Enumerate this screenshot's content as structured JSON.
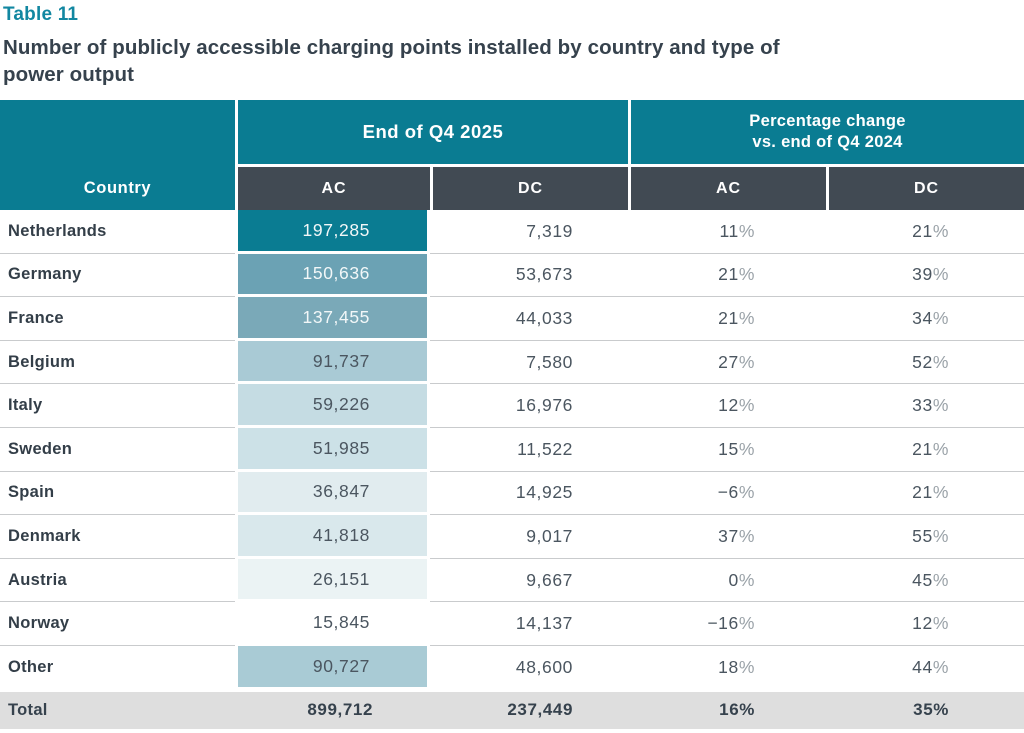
{
  "page": {
    "table_label": "Table 11",
    "title_lines": [
      "Number of publicly accessible charging points installed by country and type of",
      "power output"
    ]
  },
  "colors": {
    "teal_header": "#0a7c92",
    "dark_header": "#414a53",
    "label_teal": "#1287a1",
    "title_text": "#36424d",
    "country_text": "#333e48",
    "number_text": "#4b5660",
    "percent_sign": "#9aa2a8",
    "row_line": "#c9cbcd",
    "total_bg": "#dedede"
  },
  "table": {
    "header": {
      "country_label": "Country",
      "group_2025": "End of Q4 2025",
      "group_change_line1": "Percentage change",
      "group_change_line2": "vs. end of Q4 2024",
      "sub_ac_1": "AC",
      "sub_dc_1": "DC",
      "sub_ac_2": "AC",
      "sub_dc_2": "DC"
    },
    "rows": [
      {
        "country": "Netherlands",
        "ac": "197,285",
        "dc": "7,319",
        "ac_pct": "11%",
        "dc_pct": "21%",
        "ac_bg": "#0a7c92",
        "ac_text_color": "#f2f7f8"
      },
      {
        "country": "Germany",
        "ac": "150,636",
        "dc": "53,673",
        "ac_pct": "21%",
        "dc_pct": "39%",
        "ac_bg": "#6ba2b4",
        "ac_text_color": "#f2f7f8"
      },
      {
        "country": "France",
        "ac": "137,455",
        "dc": "44,033",
        "ac_pct": "21%",
        "dc_pct": "34%",
        "ac_bg": "#7aa9b8",
        "ac_text_color": "#f2f7f8"
      },
      {
        "country": "Belgium",
        "ac": "91,737",
        "dc": "7,580",
        "ac_pct": "27%",
        "dc_pct": "52%",
        "ac_bg": "#a9cad5",
        "ac_text_color": "#4b5660"
      },
      {
        "country": "Italy",
        "ac": "59,226",
        "dc": "16,976",
        "ac_pct": "12%",
        "dc_pct": "33%",
        "ac_bg": "#c5dce3",
        "ac_text_color": "#4b5660"
      },
      {
        "country": "Sweden",
        "ac": "51,985",
        "dc": "11,522",
        "ac_pct": "15%",
        "dc_pct": "21%",
        "ac_bg": "#cce1e7",
        "ac_text_color": "#4b5660"
      },
      {
        "country": "Spain",
        "ac": "36,847",
        "dc": "14,925",
        "ac_pct": "−6%",
        "dc_pct": "21%",
        "ac_bg": "#e1ecef",
        "ac_text_color": "#4b5660"
      },
      {
        "country": "Denmark",
        "ac": "41,818",
        "dc": "9,017",
        "ac_pct": "37%",
        "dc_pct": "55%",
        "ac_bg": "#d9e8ec",
        "ac_text_color": "#4b5660"
      },
      {
        "country": "Austria",
        "ac": "26,151",
        "dc": "9,667",
        "ac_pct": "0%",
        "dc_pct": "45%",
        "ac_bg": "#ebf3f4",
        "ac_text_color": "#4b5660"
      },
      {
        "country": "Norway",
        "ac": "15,845",
        "dc": "14,137",
        "ac_pct": "−16%",
        "dc_pct": "12%",
        "ac_bg": "#ffffff",
        "ac_text_color": "#4b5660"
      },
      {
        "country": "Other",
        "ac": "90,727",
        "dc": "48,600",
        "ac_pct": "18%",
        "dc_pct": "44%",
        "ac_bg": "#a9cbd5",
        "ac_text_color": "#4b5660"
      }
    ],
    "total_row": {
      "country": "Total",
      "ac": "899,712",
      "dc": "237,449",
      "ac_pct": "16%",
      "dc_pct": "35%"
    }
  }
}
